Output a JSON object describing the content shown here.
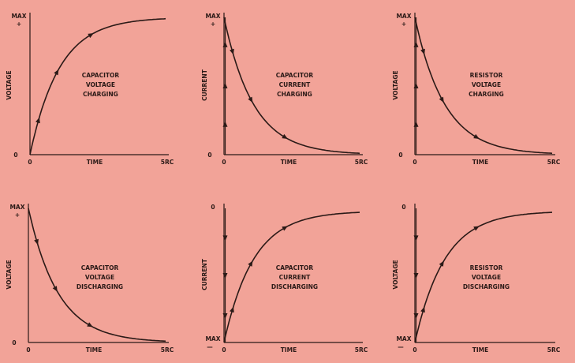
{
  "colors": {
    "background": "#f2a398",
    "ink": "#2b1a17"
  },
  "panels": [
    {
      "id": "cap-voltage-charging",
      "y_label": "VOLTAGE",
      "top_labels": [
        "MAX",
        "+"
      ],
      "bottom_label": "0",
      "x_start_label": "0",
      "x_axis_label": "TIME",
      "x_end_label": "5RC",
      "caption": [
        "CAPACITOR",
        "VOLTAGE",
        "CHARGING"
      ],
      "curve": "rise",
      "vertical": "dashed",
      "vertical_arrows": "none"
    },
    {
      "id": "cap-current-charging",
      "y_label": "CURRENT",
      "top_labels": [
        "MAX",
        "+"
      ],
      "bottom_label": "0",
      "x_start_label": "0",
      "x_axis_label": "TIME",
      "x_end_label": "5RC",
      "caption": [
        "CAPACITOR",
        "CURRENT",
        "CHARGING"
      ],
      "curve": "decay",
      "vertical": "solid",
      "vertical_arrows": "up"
    },
    {
      "id": "res-voltage-charging",
      "y_label": "VOLTAGE",
      "top_labels": [
        "MAX",
        "+"
      ],
      "bottom_label": "0",
      "x_start_label": "0",
      "x_axis_label": "TIME",
      "x_end_label": "5RC",
      "caption": [
        "RESISTOR",
        "VOLTAGE",
        "CHARGING"
      ],
      "curve": "decay",
      "vertical": "solid",
      "vertical_arrows": "up"
    },
    {
      "id": "cap-voltage-discharging",
      "y_label": "VOLTAGE",
      "top_labels": [
        "MAX",
        "+"
      ],
      "bottom_label": "0",
      "x_start_label": "0",
      "x_axis_label": "TIME",
      "x_end_label": "5RC",
      "caption": [
        "CAPACITOR",
        "VOLTAGE",
        "DISCHARGING"
      ],
      "curve": "decay",
      "vertical": "dashed",
      "vertical_arrows": "none"
    },
    {
      "id": "cap-current-discharging",
      "y_label": "CURRENT",
      "top_labels": [
        "0"
      ],
      "bottom_label": "MAX",
      "bottom_sign": "—",
      "x_start_label": "0",
      "x_axis_label": "TIME",
      "x_end_label": "5RC",
      "caption": [
        "CAPACITOR",
        "CURRENT",
        "DISCHARGING"
      ],
      "curve": "rise_from_bottom",
      "vertical": "solid",
      "vertical_arrows": "down"
    },
    {
      "id": "res-voltage-discharging",
      "y_label": "VOLTAGE",
      "top_labels": [
        "0"
      ],
      "bottom_label": "MAX",
      "bottom_sign": "—",
      "x_start_label": "0",
      "x_axis_label": "TIME",
      "x_end_label": "5RC",
      "caption": [
        "RESISTOR",
        "VOLTAGE",
        "DISCHARGING"
      ],
      "curve": "rise_from_bottom",
      "vertical": "solid",
      "vertical_arrows": "down"
    }
  ]
}
